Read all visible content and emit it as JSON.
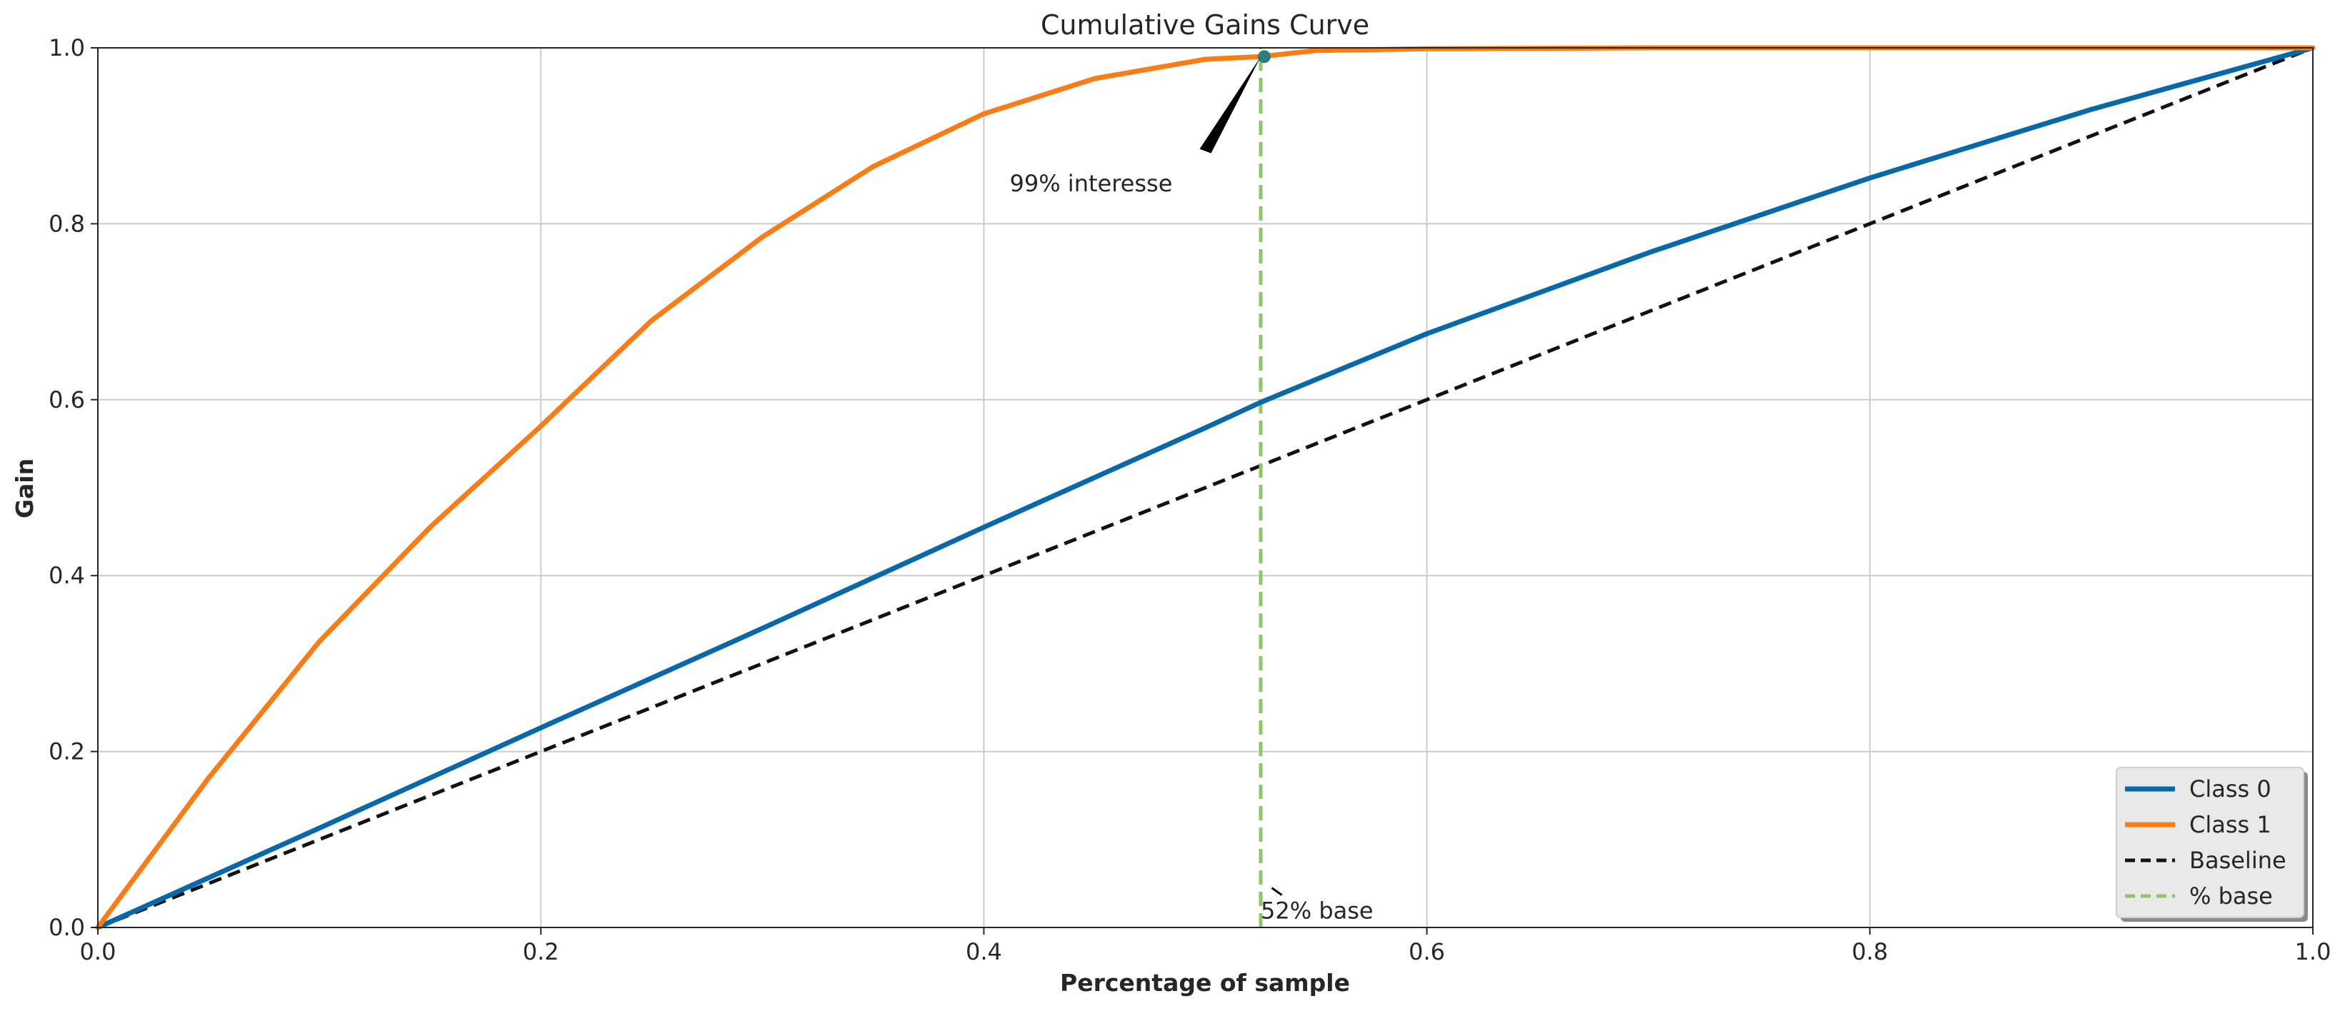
{
  "chart_data": {
    "type": "line",
    "title": "Cumulative Gains Curve",
    "xlabel": "Percentage of sample",
    "ylabel": "Gain",
    "xlim": [
      0,
      1
    ],
    "ylim": [
      0,
      1
    ],
    "xticks": [
      "0.0",
      "0.2",
      "0.4",
      "0.6",
      "0.8",
      "1.0"
    ],
    "yticks": [
      "0.0",
      "0.2",
      "0.4",
      "0.6",
      "0.8",
      "1.0"
    ],
    "grid": true,
    "legend_position": "bottom-right",
    "series": [
      {
        "name": "Class 0",
        "color": "#0868a8",
        "style": "solid",
        "x": [
          0,
          0.1,
          0.2,
          0.3,
          0.4,
          0.5,
          0.525,
          0.6,
          0.7,
          0.8,
          0.9,
          1.0
        ],
        "y": [
          0,
          0.113,
          0.227,
          0.34,
          0.455,
          0.568,
          0.597,
          0.675,
          0.767,
          0.852,
          0.93,
          1.0
        ]
      },
      {
        "name": "Class 1",
        "color": "#f97c16",
        "style": "solid",
        "x": [
          0,
          0.05,
          0.1,
          0.15,
          0.2,
          0.25,
          0.3,
          0.35,
          0.4,
          0.45,
          0.5,
          0.525,
          0.55,
          0.6,
          0.7,
          0.8,
          0.9,
          1.0
        ],
        "y": [
          0,
          0.17,
          0.325,
          0.455,
          0.57,
          0.69,
          0.785,
          0.865,
          0.925,
          0.965,
          0.987,
          0.99,
          0.997,
          0.999,
          1.0,
          1.0,
          1.0,
          1.0
        ]
      },
      {
        "name": "Baseline",
        "color": "#111111",
        "style": "dashed",
        "x": [
          0,
          1
        ],
        "y": [
          0,
          1
        ]
      },
      {
        "name": "% base",
        "color": "#8fc66a",
        "style": "dashed",
        "x": [
          0.525,
          0.525
        ],
        "y": [
          0,
          1
        ]
      }
    ],
    "marker": {
      "x": 0.525,
      "y": 0.99,
      "color": "#2a8080"
    },
    "annotations": [
      {
        "text": "99% interesse",
        "target_x": 0.525,
        "target_y": 0.99,
        "text_x": 0.45,
        "text_y": 0.85
      },
      {
        "text": "52% base",
        "target_x": 0.53,
        "target_y": 0.045,
        "text_x": 0.525,
        "text_y": 0.01
      }
    ]
  }
}
